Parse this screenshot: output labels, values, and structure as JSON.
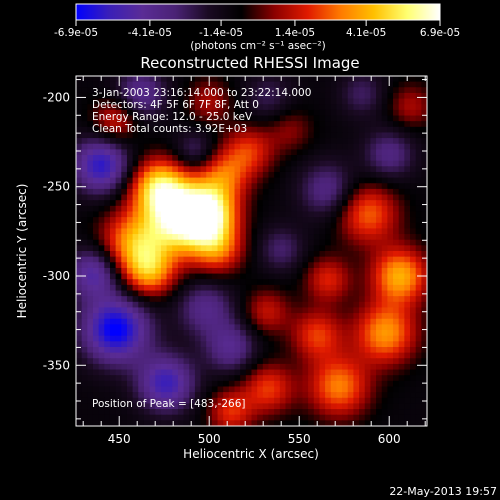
{
  "chart_data": {
    "type": "heatmap",
    "title": "Reconstructed RHESSI Image",
    "xlabel": "Heliocentric X (arcsec)",
    "ylabel": "Heliocentric Y (arcsec)",
    "xlim": [
      426,
      621
    ],
    "ylim": [
      -384,
      -188
    ],
    "xticks": [
      450,
      500,
      550,
      600
    ],
    "yticks": [
      -200,
      -250,
      -300,
      -350
    ],
    "xtick_labels": [
      "450",
      "500",
      "550",
      "600"
    ],
    "ytick_labels": [
      "-200",
      "-250",
      "-300",
      "-350"
    ],
    "grid": false,
    "colorbar": {
      "position": "top",
      "range": [
        -6.9e-05,
        6.9e-05
      ],
      "ticks": [
        -6.9e-05,
        -4.1e-05,
        -1.4e-05,
        1.4e-05,
        4.1e-05,
        6.9e-05
      ],
      "tick_labels": [
        "-6.9e-05",
        "-4.1e-05",
        "-1.4e-05",
        "1.4e-05",
        "4.1e-05",
        "6.9e-05"
      ],
      "units_label": "(photons cm⁻² s⁻¹ asec⁻²)",
      "colormap": [
        "#0000ff",
        "#3a1fb8",
        "#5a2c96",
        "#4a2275",
        "#1a0a22",
        "#000000",
        "#8c0000",
        "#e01a00",
        "#ff7a00",
        "#ffc000",
        "#ffff70",
        "#ffffff"
      ]
    },
    "annotations": [
      "3-Jan-2003 23:16:14.000 to 23:22:14.000",
      "Detectors: 4F 5F 6F 7F 8F, Att 0",
      "Energy Range: 12.0 - 25.0 keV",
      "Clean    Total counts: 3.92E+03",
      "Position of Peak = [483,-266]"
    ],
    "peak": {
      "x": 483,
      "y": -266
    },
    "blobs": [
      {
        "x": 485,
        "y": -268,
        "v": 6.9e-05,
        "s": 14
      },
      {
        "x": 472,
        "y": -250,
        "v": 5.5e-05,
        "s": 11
      },
      {
        "x": 500,
        "y": -265,
        "v": 5.5e-05,
        "s": 11
      },
      {
        "x": 458,
        "y": -282,
        "v": 4.6e-05,
        "s": 13
      },
      {
        "x": 467,
        "y": -298,
        "v": 4e-05,
        "s": 10
      },
      {
        "x": 505,
        "y": -285,
        "v": 3.4e-05,
        "s": 10
      },
      {
        "x": 508,
        "y": -244,
        "v": 3.2e-05,
        "s": 10
      },
      {
        "x": 522,
        "y": -230,
        "v": 3e-05,
        "s": 10
      },
      {
        "x": 448,
        "y": -213,
        "v": 2.8e-05,
        "s": 9
      },
      {
        "x": 500,
        "y": -202,
        "v": 2e-05,
        "s": 9
      },
      {
        "x": 588,
        "y": -265,
        "v": 3.8e-05,
        "s": 12
      },
      {
        "x": 606,
        "y": -300,
        "v": 5e-05,
        "s": 11
      },
      {
        "x": 598,
        "y": -332,
        "v": 4.6e-05,
        "s": 12
      },
      {
        "x": 566,
        "y": -302,
        "v": 2.8e-05,
        "s": 9
      },
      {
        "x": 560,
        "y": -333,
        "v": 3.2e-05,
        "s": 10
      },
      {
        "x": 572,
        "y": -362,
        "v": 4.2e-05,
        "s": 12
      },
      {
        "x": 533,
        "y": -363,
        "v": 3.2e-05,
        "s": 10
      },
      {
        "x": 532,
        "y": -320,
        "v": 2.4e-05,
        "s": 9
      },
      {
        "x": 512,
        "y": -376,
        "v": 3e-05,
        "s": 9
      },
      {
        "x": 545,
        "y": -218,
        "v": 1.6e-05,
        "s": 9
      },
      {
        "x": 612,
        "y": -205,
        "v": 2e-05,
        "s": 9
      },
      {
        "x": 448,
        "y": -330,
        "v": -6e-05,
        "s": 13
      },
      {
        "x": 436,
        "y": -298,
        "v": -4e-05,
        "s": 10
      },
      {
        "x": 476,
        "y": -360,
        "v": -4.6e-05,
        "s": 11
      },
      {
        "x": 440,
        "y": -238,
        "v": -5e-05,
        "s": 11
      },
      {
        "x": 462,
        "y": -198,
        "v": -3e-05,
        "s": 10
      },
      {
        "x": 498,
        "y": -318,
        "v": -2.8e-05,
        "s": 11
      },
      {
        "x": 512,
        "y": -340,
        "v": -3e-05,
        "s": 10
      },
      {
        "x": 566,
        "y": -252,
        "v": -2.8e-05,
        "s": 11
      },
      {
        "x": 600,
        "y": -232,
        "v": -2.6e-05,
        "s": 10
      },
      {
        "x": 540,
        "y": -285,
        "v": -2e-05,
        "s": 9
      },
      {
        "x": 533,
        "y": -200,
        "v": -1.6e-05,
        "s": 10
      },
      {
        "x": 492,
        "y": -230,
        "v": -2e-05,
        "s": 8
      },
      {
        "x": 585,
        "y": -198,
        "v": -1.8e-05,
        "s": 9
      }
    ],
    "background_value": -1e-05
  },
  "footer": {
    "timestamp": "22-May-2013 19:57"
  }
}
